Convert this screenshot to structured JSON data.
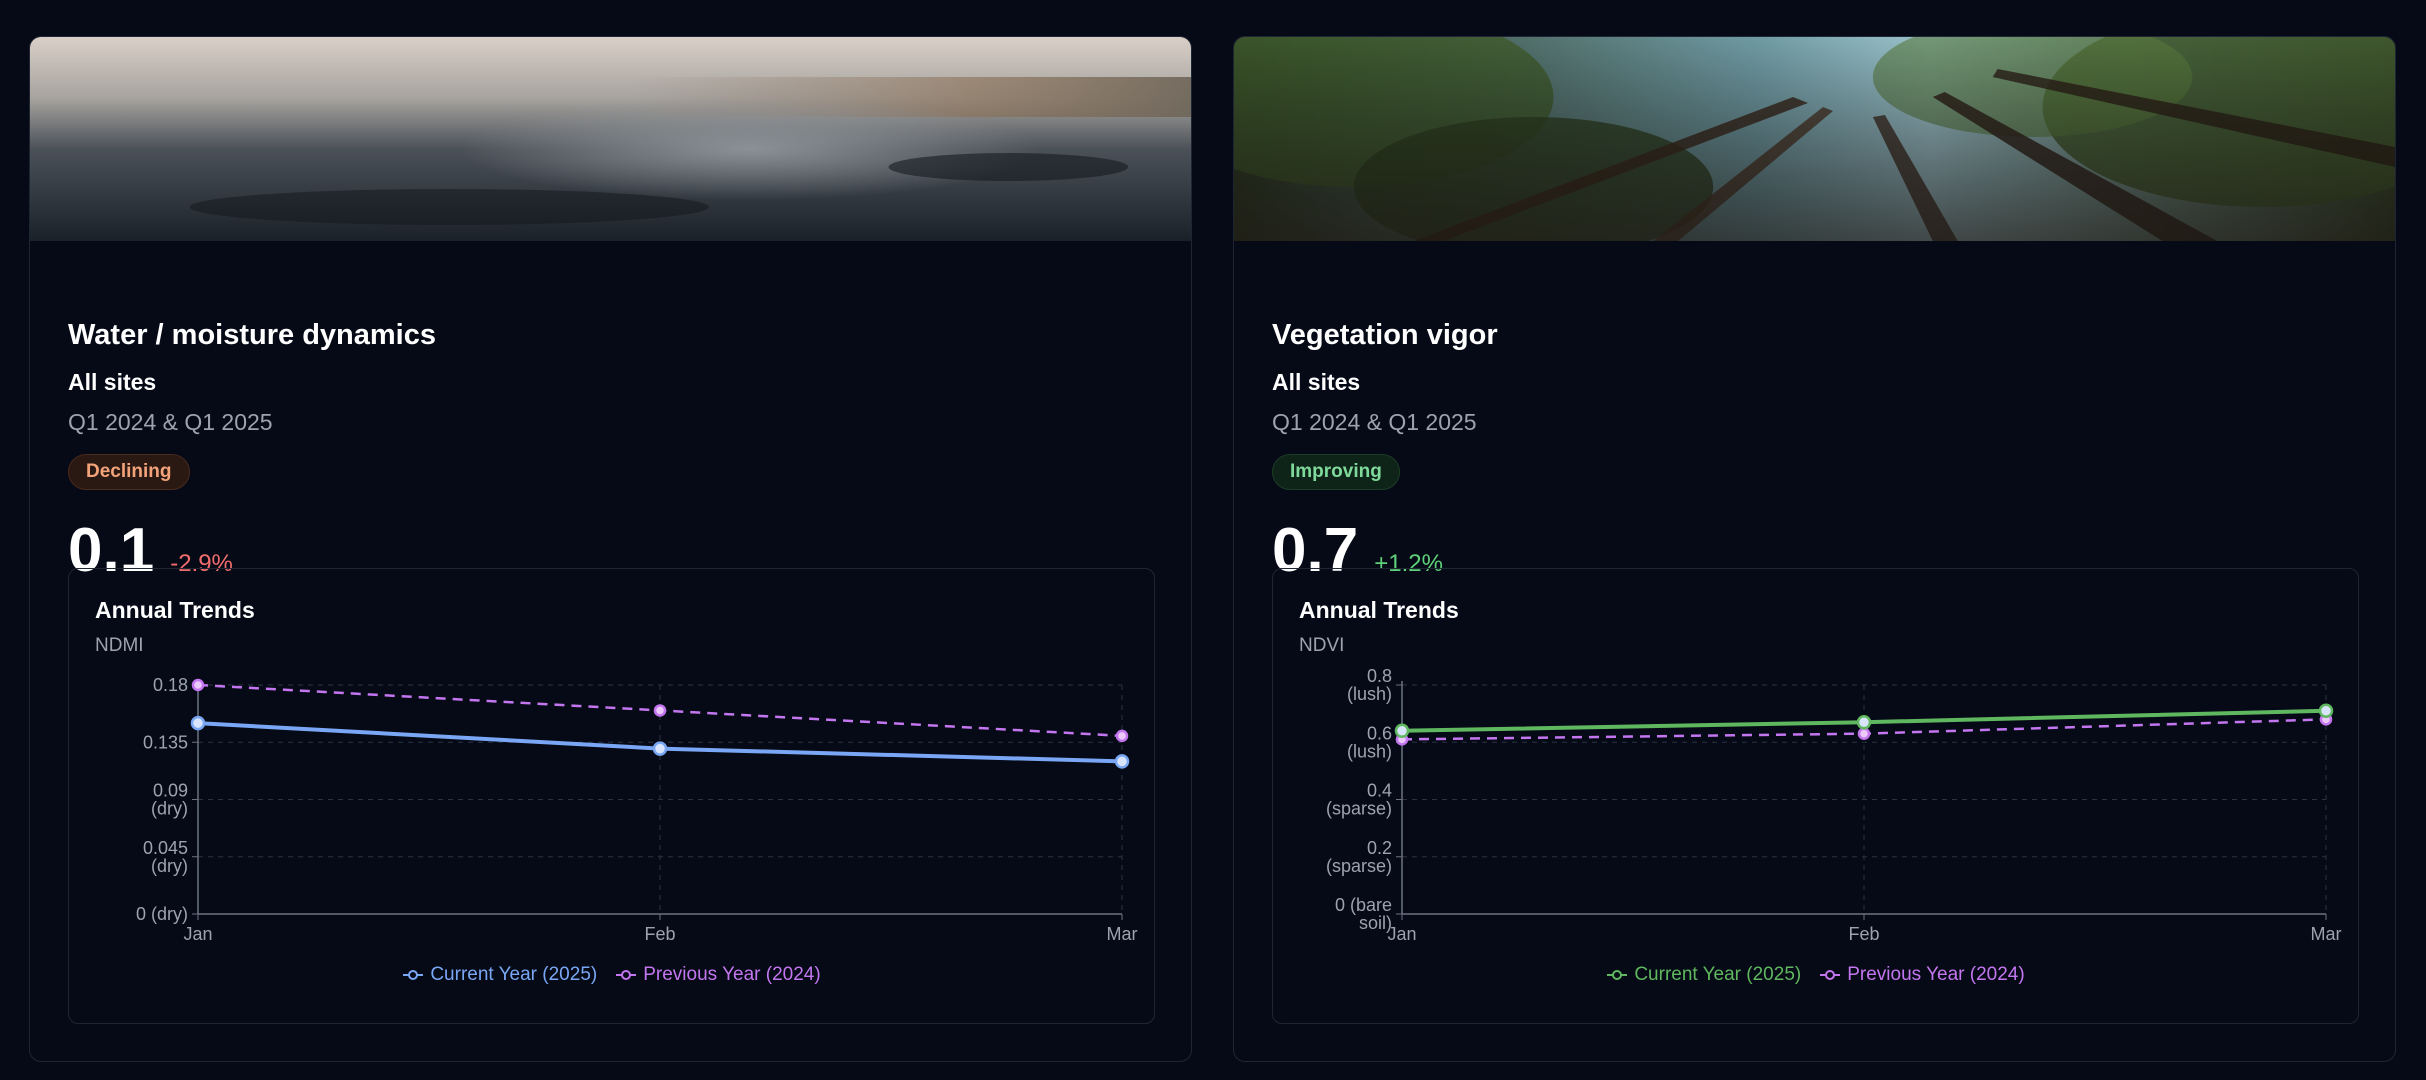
{
  "cards": [
    {
      "title": "Water / moisture dynamics",
      "scope": "All sites",
      "period": "Q1 2024 & Q1 2025",
      "status": "Declining",
      "value": "0.1",
      "change": "-2.9%",
      "banner": "water-blur-banner",
      "chart_title": "Annual Trends",
      "chart_metric": "NDMI",
      "legend": [
        "Current Year (2025)",
        "Previous Year (2024)"
      ],
      "colors": {
        "current": "#7aa7f5",
        "previous": "#c476f0"
      }
    },
    {
      "title": "Vegetation vigor",
      "scope": "All sites",
      "period": "Q1 2024 & Q1 2025",
      "status": "Improving",
      "value": "0.7",
      "change": "+1.2%",
      "banner": "forest-canopy-banner",
      "chart_title": "Annual Trends",
      "chart_metric": "NDVI",
      "legend": [
        "Current Year (2025)",
        "Previous Year (2024)"
      ],
      "colors": {
        "current": "#5fb85f",
        "previous": "#c476f0"
      }
    }
  ],
  "chart_data": [
    {
      "type": "line",
      "title": "Annual Trends",
      "ylabel": "NDMI",
      "categories": [
        "Jan",
        "Feb",
        "Mar"
      ],
      "ylim": [
        0,
        0.18
      ],
      "yticks": [
        {
          "value": 0,
          "label": [
            "0 (dry)"
          ]
        },
        {
          "value": 0.045,
          "label": [
            "0.045",
            "(dry)"
          ]
        },
        {
          "value": 0.09,
          "label": [
            "0.09",
            "(dry)"
          ]
        },
        {
          "value": 0.135,
          "label": [
            "0.135"
          ]
        },
        {
          "value": 0.18,
          "label": [
            "0.18"
          ]
        }
      ],
      "grid": true,
      "legend_position": "bottom",
      "series": [
        {
          "name": "Current Year (2025)",
          "values": [
            0.15,
            0.13,
            0.12
          ],
          "dashed": false
        },
        {
          "name": "Previous Year (2024)",
          "values": [
            0.18,
            0.16,
            0.14
          ],
          "dashed": true
        }
      ]
    },
    {
      "type": "line",
      "title": "Annual Trends",
      "ylabel": "NDVI",
      "categories": [
        "Jan",
        "Feb",
        "Mar"
      ],
      "ylim": [
        0,
        0.8
      ],
      "yticks": [
        {
          "value": 0,
          "label": [
            "0 (bare",
            "soil)"
          ]
        },
        {
          "value": 0.2,
          "label": [
            "0.2",
            "(sparse)"
          ]
        },
        {
          "value": 0.4,
          "label": [
            "0.4",
            "(sparse)"
          ]
        },
        {
          "value": 0.6,
          "label": [
            "0.6",
            "(lush)"
          ]
        },
        {
          "value": 0.8,
          "label": [
            "0.8",
            "(lush)"
          ]
        }
      ],
      "grid": true,
      "legend_position": "bottom",
      "series": [
        {
          "name": "Current Year (2025)",
          "values": [
            0.64,
            0.67,
            0.71
          ],
          "dashed": false
        },
        {
          "name": "Previous Year (2024)",
          "values": [
            0.61,
            0.63,
            0.68
          ],
          "dashed": true
        }
      ]
    }
  ]
}
